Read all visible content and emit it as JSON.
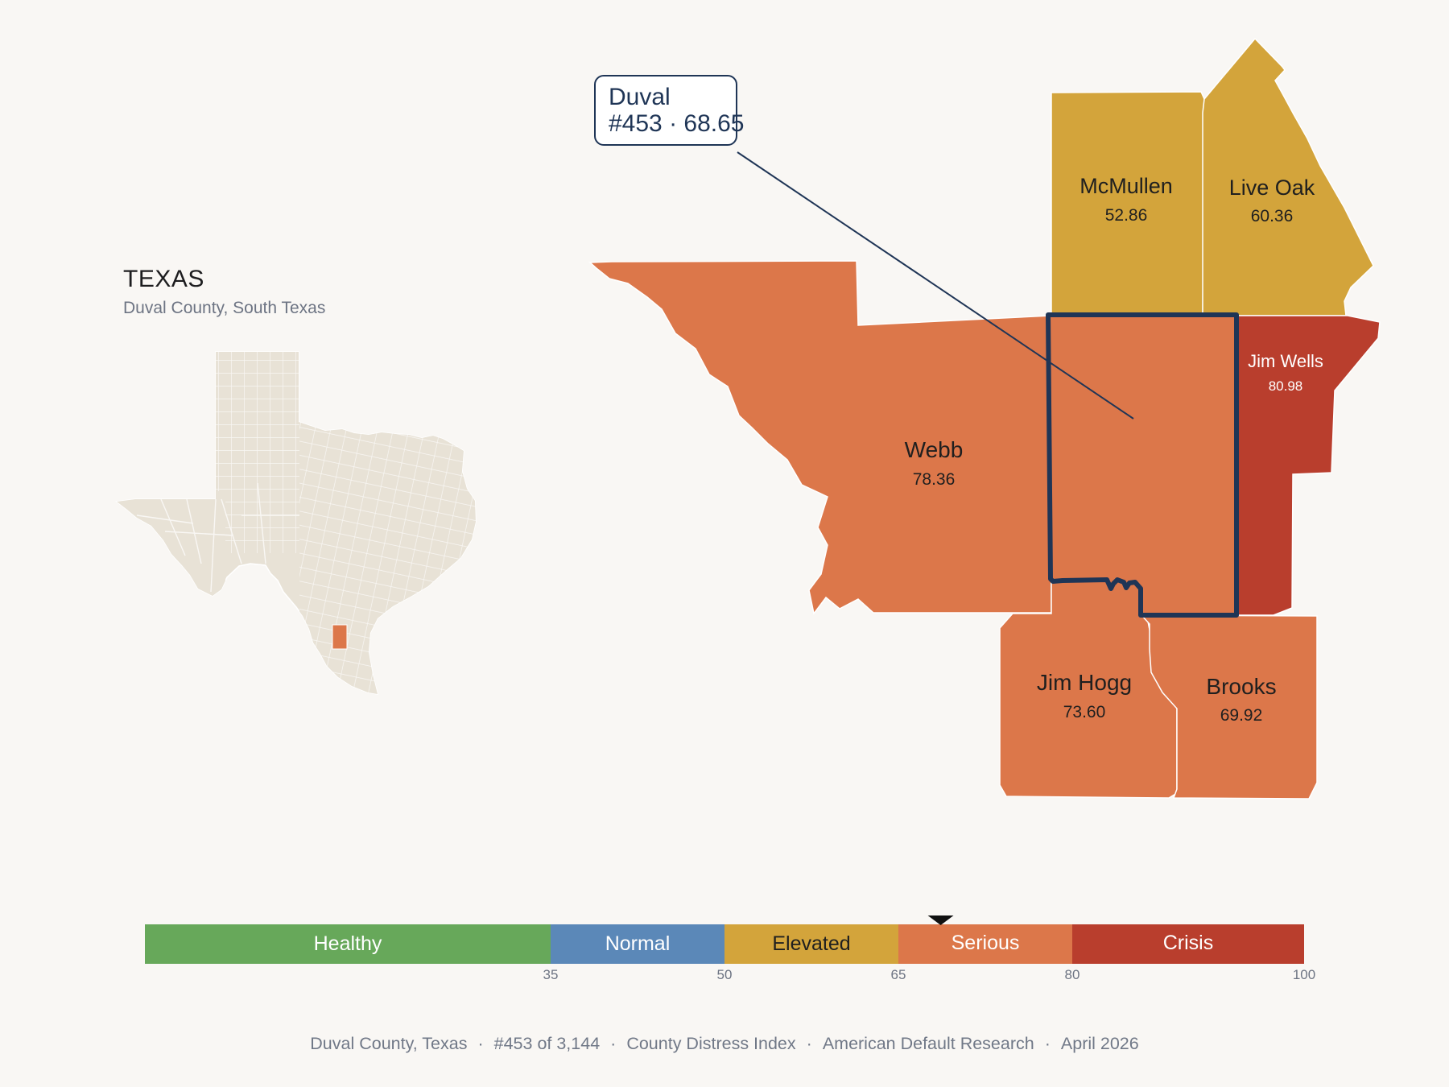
{
  "inset": {
    "title": "TEXAS",
    "subtitle": "Duval County, South Texas"
  },
  "callout": {
    "name": "Duval",
    "detail": "#453 · 68.65"
  },
  "counties": {
    "mcmullen": {
      "name": "McMullen",
      "value": "52.86"
    },
    "live_oak": {
      "name": "Live Oak",
      "value": "60.36"
    },
    "jim_wells": {
      "name": "Jim Wells",
      "value": "80.98"
    },
    "webb": {
      "name": "Webb",
      "value": "78.36"
    },
    "jim_hogg": {
      "name": "Jim Hogg",
      "value": "73.60"
    },
    "brooks": {
      "name": "Brooks",
      "value": "69.92"
    }
  },
  "colors": {
    "healthy": "#67a85a",
    "normal": "#5b88b8",
    "elevated": "#d3a43b",
    "serious": "#dc774a",
    "crisis": "#b93e2d",
    "highlight_outline": "#1f3556",
    "inset_land": "#e8e2d6"
  },
  "legend": {
    "bands": [
      {
        "label": "Healthy",
        "from": 0,
        "to": 35
      },
      {
        "label": "Normal",
        "from": 35,
        "to": 50
      },
      {
        "label": "Elevated",
        "from": 50,
        "to": 65
      },
      {
        "label": "Serious",
        "from": 65,
        "to": 80
      },
      {
        "label": "Crisis",
        "from": 80,
        "to": 100
      }
    ],
    "ticks": [
      "35",
      "50",
      "65",
      "80",
      "100"
    ],
    "marker_value": 68.65
  },
  "footer": {
    "county": "Duval County, Texas",
    "rank": "#453 of 3,144",
    "index": "County Distress Index",
    "source": "American Default Research",
    "date": "April 2026"
  }
}
